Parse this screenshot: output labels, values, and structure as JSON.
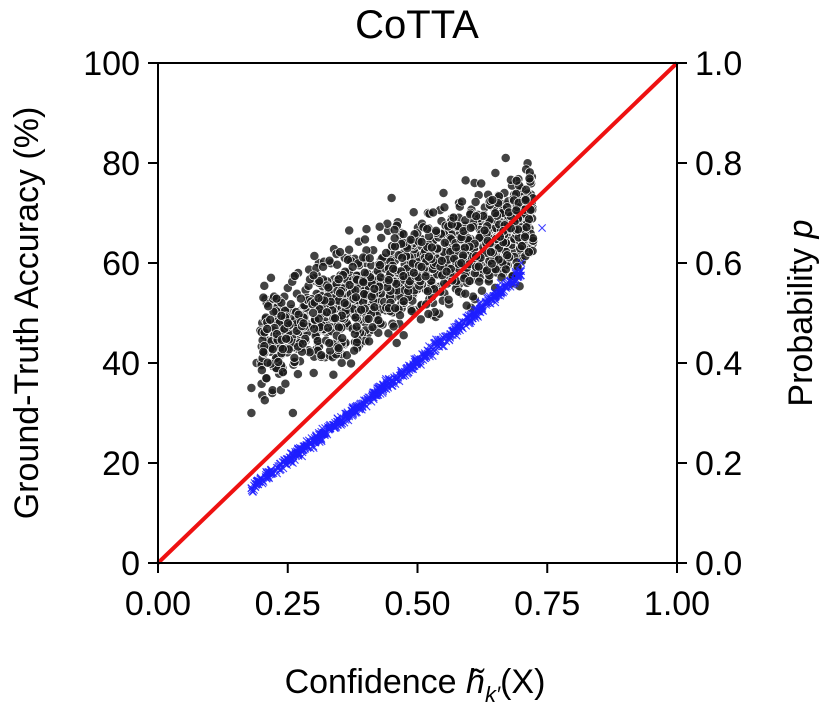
{
  "chart_data": {
    "type": "scatter",
    "title": "CoTTA",
    "xlabel": "Confidence h̃",
    "xlabel_parts": {
      "main": "Confidence ",
      "symbol": "h̃",
      "subscript": "k′",
      "arg": "(X)"
    },
    "ylabel": "Ground-Truth Accuracy (%)",
    "y2label": "Probability p",
    "y2label_parts": {
      "main": "Probability ",
      "symbol": "p"
    },
    "xlim": [
      0.0,
      1.0
    ],
    "ylim": [
      0,
      100
    ],
    "y2lim": [
      0.0,
      1.0
    ],
    "x_ticks": [
      "0.00",
      "0.25",
      "0.50",
      "0.75",
      "1.00"
    ],
    "y_ticks": [
      "0",
      "20",
      "40",
      "60",
      "80",
      "100"
    ],
    "y2_ticks": [
      "0.0",
      "0.2",
      "0.4",
      "0.6",
      "0.8",
      "1.0"
    ],
    "grid": false,
    "series": [
      {
        "marker": "circle",
        "color": "#1a1a1a",
        "axis": "left",
        "trend": {
          "x_range": [
            0.18,
            0.74
          ],
          "y_at_xmin": 43,
          "y_at_xmax": 70,
          "spread": 10
        },
        "points": [
          [
            0.18,
            30
          ],
          [
            0.18,
            35
          ],
          [
            0.19,
            40
          ],
          [
            0.21,
            48
          ],
          [
            0.22,
            34
          ],
          [
            0.23,
            52
          ],
          [
            0.24,
            44
          ],
          [
            0.25,
            55
          ],
          [
            0.26,
            30
          ],
          [
            0.27,
            58
          ],
          [
            0.28,
            46
          ],
          [
            0.3,
            38
          ],
          [
            0.31,
            60
          ],
          [
            0.33,
            48
          ],
          [
            0.35,
            55
          ],
          [
            0.36,
            61
          ],
          [
            0.38,
            44
          ],
          [
            0.4,
            60
          ],
          [
            0.41,
            50
          ],
          [
            0.43,
            65
          ],
          [
            0.45,
            73
          ],
          [
            0.46,
            44
          ],
          [
            0.47,
            66
          ],
          [
            0.48,
            56
          ],
          [
            0.5,
            62
          ],
          [
            0.52,
            70
          ],
          [
            0.53,
            52
          ],
          [
            0.55,
            74
          ],
          [
            0.56,
            60
          ],
          [
            0.58,
            72
          ],
          [
            0.59,
            62
          ],
          [
            0.61,
            76
          ],
          [
            0.62,
            68
          ],
          [
            0.63,
            63
          ],
          [
            0.65,
            78
          ],
          [
            0.67,
            81
          ],
          [
            0.68,
            70
          ],
          [
            0.69,
            64
          ],
          [
            0.7,
            75
          ],
          [
            0.72,
            72
          ]
        ]
      },
      {
        "marker": "x",
        "color": "#1f1fff",
        "axis": "right",
        "trend": {
          "x_range": [
            0.18,
            0.74
          ],
          "p_at_xmin": 0.15,
          "p_at_xmid": 0.37,
          "p_at_xmax": 0.62
        },
        "points": [
          [
            0.18,
            0.15
          ],
          [
            0.22,
            0.18
          ],
          [
            0.26,
            0.2
          ],
          [
            0.3,
            0.23
          ],
          [
            0.34,
            0.27
          ],
          [
            0.38,
            0.31
          ],
          [
            0.42,
            0.34
          ],
          [
            0.46,
            0.37
          ],
          [
            0.5,
            0.41
          ],
          [
            0.54,
            0.44
          ],
          [
            0.58,
            0.48
          ],
          [
            0.62,
            0.52
          ],
          [
            0.66,
            0.56
          ],
          [
            0.7,
            0.6
          ],
          [
            0.74,
            0.67
          ]
        ]
      }
    ],
    "reference_line": {
      "color": "#ee1111",
      "from": [
        0.0,
        0
      ],
      "to": [
        1.0,
        100
      ]
    }
  }
}
